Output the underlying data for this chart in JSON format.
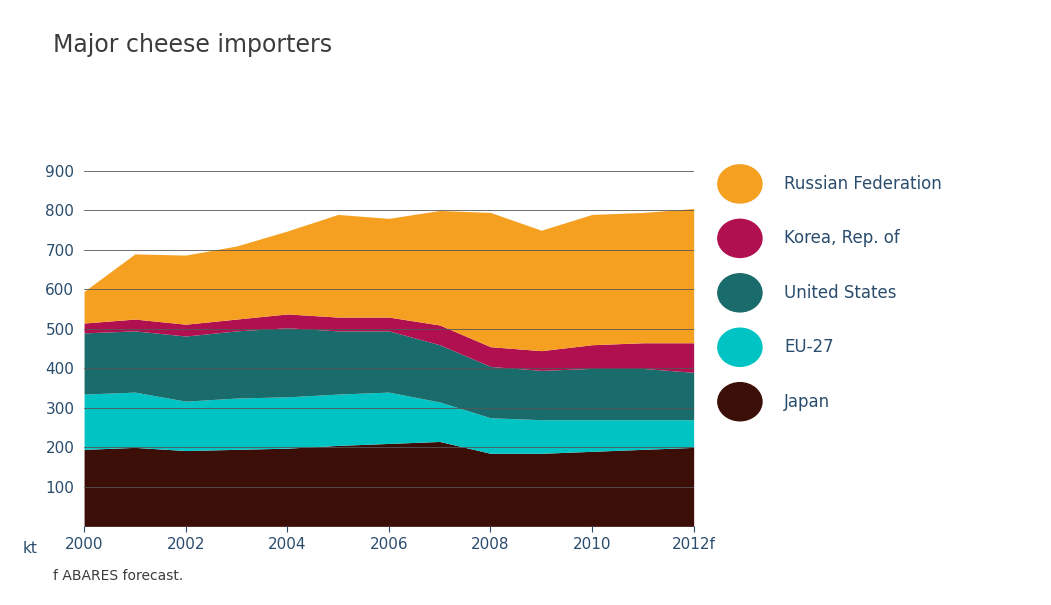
{
  "title": "Major cheese importers",
  "footnote": "f ABARES forecast.",
  "years": [
    2000,
    2001,
    2002,
    2003,
    2004,
    2005,
    2006,
    2007,
    2008,
    2009,
    2010,
    2011,
    2012
  ],
  "series": {
    "Japan": [
      195,
      200,
      192,
      195,
      198,
      205,
      210,
      215,
      185,
      185,
      190,
      195,
      200
    ],
    "EU-27": [
      140,
      140,
      125,
      130,
      130,
      130,
      130,
      100,
      90,
      85,
      80,
      75,
      70
    ],
    "United States": [
      155,
      155,
      165,
      170,
      175,
      160,
      155,
      145,
      130,
      125,
      130,
      130,
      120
    ],
    "Korea, Rep. of": [
      25,
      30,
      30,
      30,
      35,
      35,
      35,
      50,
      50,
      50,
      60,
      65,
      75
    ],
    "Russian Federation": [
      80,
      165,
      175,
      185,
      210,
      260,
      250,
      290,
      340,
      305,
      330,
      330,
      340
    ]
  },
  "colors": {
    "Japan": "#3b0e08",
    "EU-27": "#00c4c4",
    "United States": "#1a6b6b",
    "Korea, Rep. of": "#b01050",
    "Russian Federation": "#f5a020"
  },
  "ylim": [
    0,
    950
  ],
  "yticks": [
    100,
    200,
    300,
    400,
    500,
    600,
    700,
    800,
    900
  ],
  "ylabel": "kt",
  "bg_color": "#ffffff",
  "title_color": "#3c3c3c",
  "text_color": "#2a4d6e",
  "axis_text_color": "#2a4d6e",
  "orange_bar_color": "#f5a020",
  "separator_color": "#b0b0b0",
  "title_fontsize": 17,
  "legend_fontsize": 12,
  "tick_fontsize": 11
}
